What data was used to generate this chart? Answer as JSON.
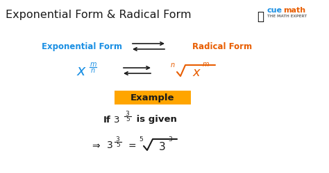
{
  "title": "Exponential Form & Radical Form",
  "title_fontsize": 11.5,
  "title_color": "#1a1a1a",
  "bg_color": "#ffffff",
  "blue_color": "#1a8fe3",
  "orange_color": "#e85d00",
  "black_color": "#1a1a1a",
  "example_bg": "#FFA500",
  "example_text": "Example",
  "example_text_color": "#1a1a1a",
  "exp_form_label": "Exponential Form",
  "rad_form_label": "Radical Form",
  "fig_width": 4.74,
  "fig_height": 2.51,
  "dpi": 100
}
